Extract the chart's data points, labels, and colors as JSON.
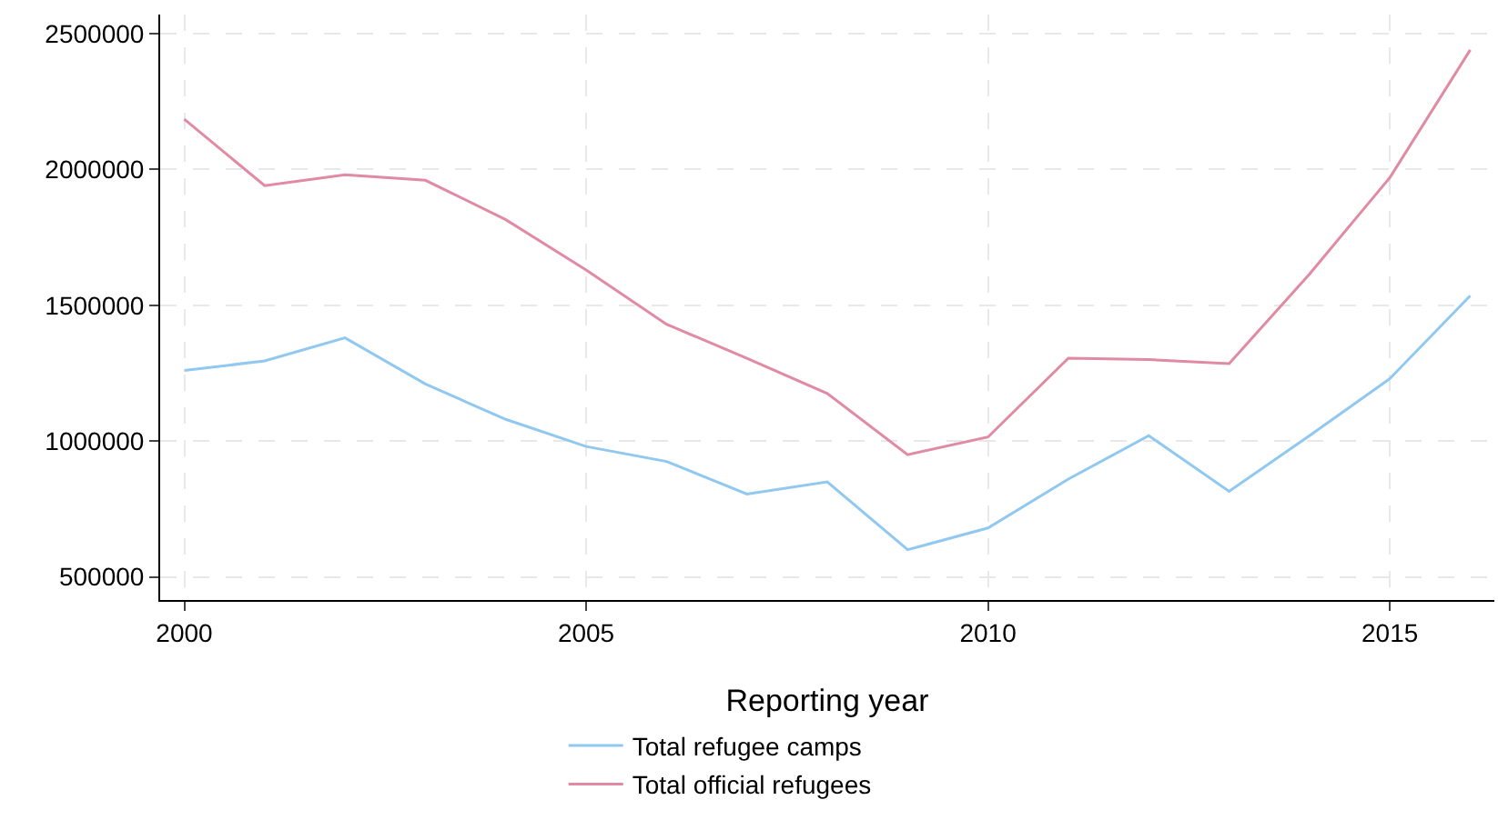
{
  "chart_data": {
    "type": "line",
    "xlabel": "Reporting year",
    "x": [
      2000,
      2001,
      2002,
      2003,
      2004,
      2005,
      2006,
      2007,
      2008,
      2009,
      2010,
      2011,
      2012,
      2013,
      2014,
      2015,
      2016
    ],
    "series": [
      {
        "name": "Total refugee camps",
        "color": "#90c8f0",
        "values": [
          1260000,
          1295000,
          1380000,
          1210000,
          1080000,
          980000,
          925000,
          805000,
          850000,
          600000,
          680000,
          860000,
          1020000,
          815000,
          1020000,
          1230000,
          1535000
        ]
      },
      {
        "name": "Total official refugees",
        "color": "#e08aa4",
        "values": [
          2185000,
          1940000,
          1980000,
          1960000,
          1815000,
          1630000,
          1430000,
          1305000,
          1175000,
          950000,
          1015000,
          1305000,
          1300000,
          1285000,
          1615000,
          1970000,
          2440000
        ]
      }
    ],
    "xlim": [
      1999.7,
      2016.3
    ],
    "xticks": [
      2000,
      2005,
      2010,
      2015
    ],
    "ylim": [
      415000,
      2570000
    ],
    "yticks": [
      500000,
      1000000,
      1500000,
      2000000,
      2500000
    ],
    "grid": true,
    "legend": "bottom",
    "marker": "none",
    "line_style": "solid"
  }
}
